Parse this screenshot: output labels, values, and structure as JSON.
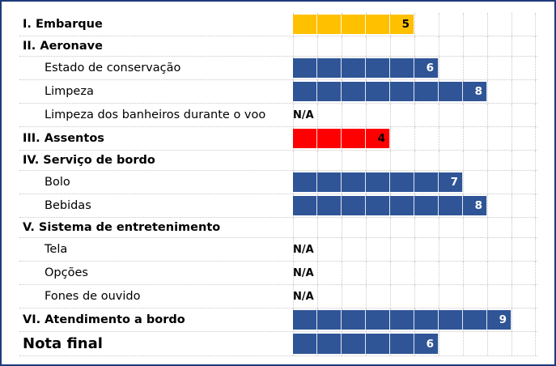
{
  "colors": {
    "blue": "#2f5597",
    "orange": "#ffc000",
    "red": "#ff0000",
    "frame": "#1f3a7a"
  },
  "chart_data": {
    "type": "bar",
    "xlim": [
      0,
      10
    ],
    "grid": true,
    "rows": [
      {
        "label": "I. Embarque",
        "kind": "header",
        "value": 5,
        "color": "#ffc000",
        "text_color": "#000000"
      },
      {
        "label": "II. Aeronave",
        "kind": "header"
      },
      {
        "label": "Estado de conservação",
        "kind": "sub",
        "value": 6,
        "color": "#2f5597",
        "text_color": "#ffffff"
      },
      {
        "label": "Limpeza",
        "kind": "sub",
        "value": 8,
        "color": "#2f5597",
        "text_color": "#ffffff"
      },
      {
        "label": "Limpeza dos banheiros durante o voo",
        "kind": "sub",
        "na": "N/A"
      },
      {
        "label": "III. Assentos",
        "kind": "header",
        "value": 4,
        "color": "#ff0000",
        "text_color": "#000000"
      },
      {
        "label": "IV. Serviço de bordo",
        "kind": "header"
      },
      {
        "label": "Bolo",
        "kind": "sub",
        "value": 7,
        "color": "#2f5597",
        "text_color": "#ffffff"
      },
      {
        "label": "Bebidas",
        "kind": "sub",
        "value": 8,
        "color": "#2f5597",
        "text_color": "#ffffff"
      },
      {
        "label": "V. Sistema de entretenimento",
        "kind": "header"
      },
      {
        "label": "Tela",
        "kind": "sub",
        "na": "N/A"
      },
      {
        "label": "Opções",
        "kind": "sub",
        "na": "N/A"
      },
      {
        "label": "Fones de ouvido",
        "kind": "sub",
        "na": "N/A"
      },
      {
        "label": "VI. Atendimento a bordo",
        "kind": "header",
        "value": 9,
        "color": "#2f5597",
        "text_color": "#ffffff"
      },
      {
        "label": "Nota final",
        "kind": "final",
        "value": 6,
        "color": "#2f5597",
        "text_color": "#ffffff"
      }
    ]
  }
}
